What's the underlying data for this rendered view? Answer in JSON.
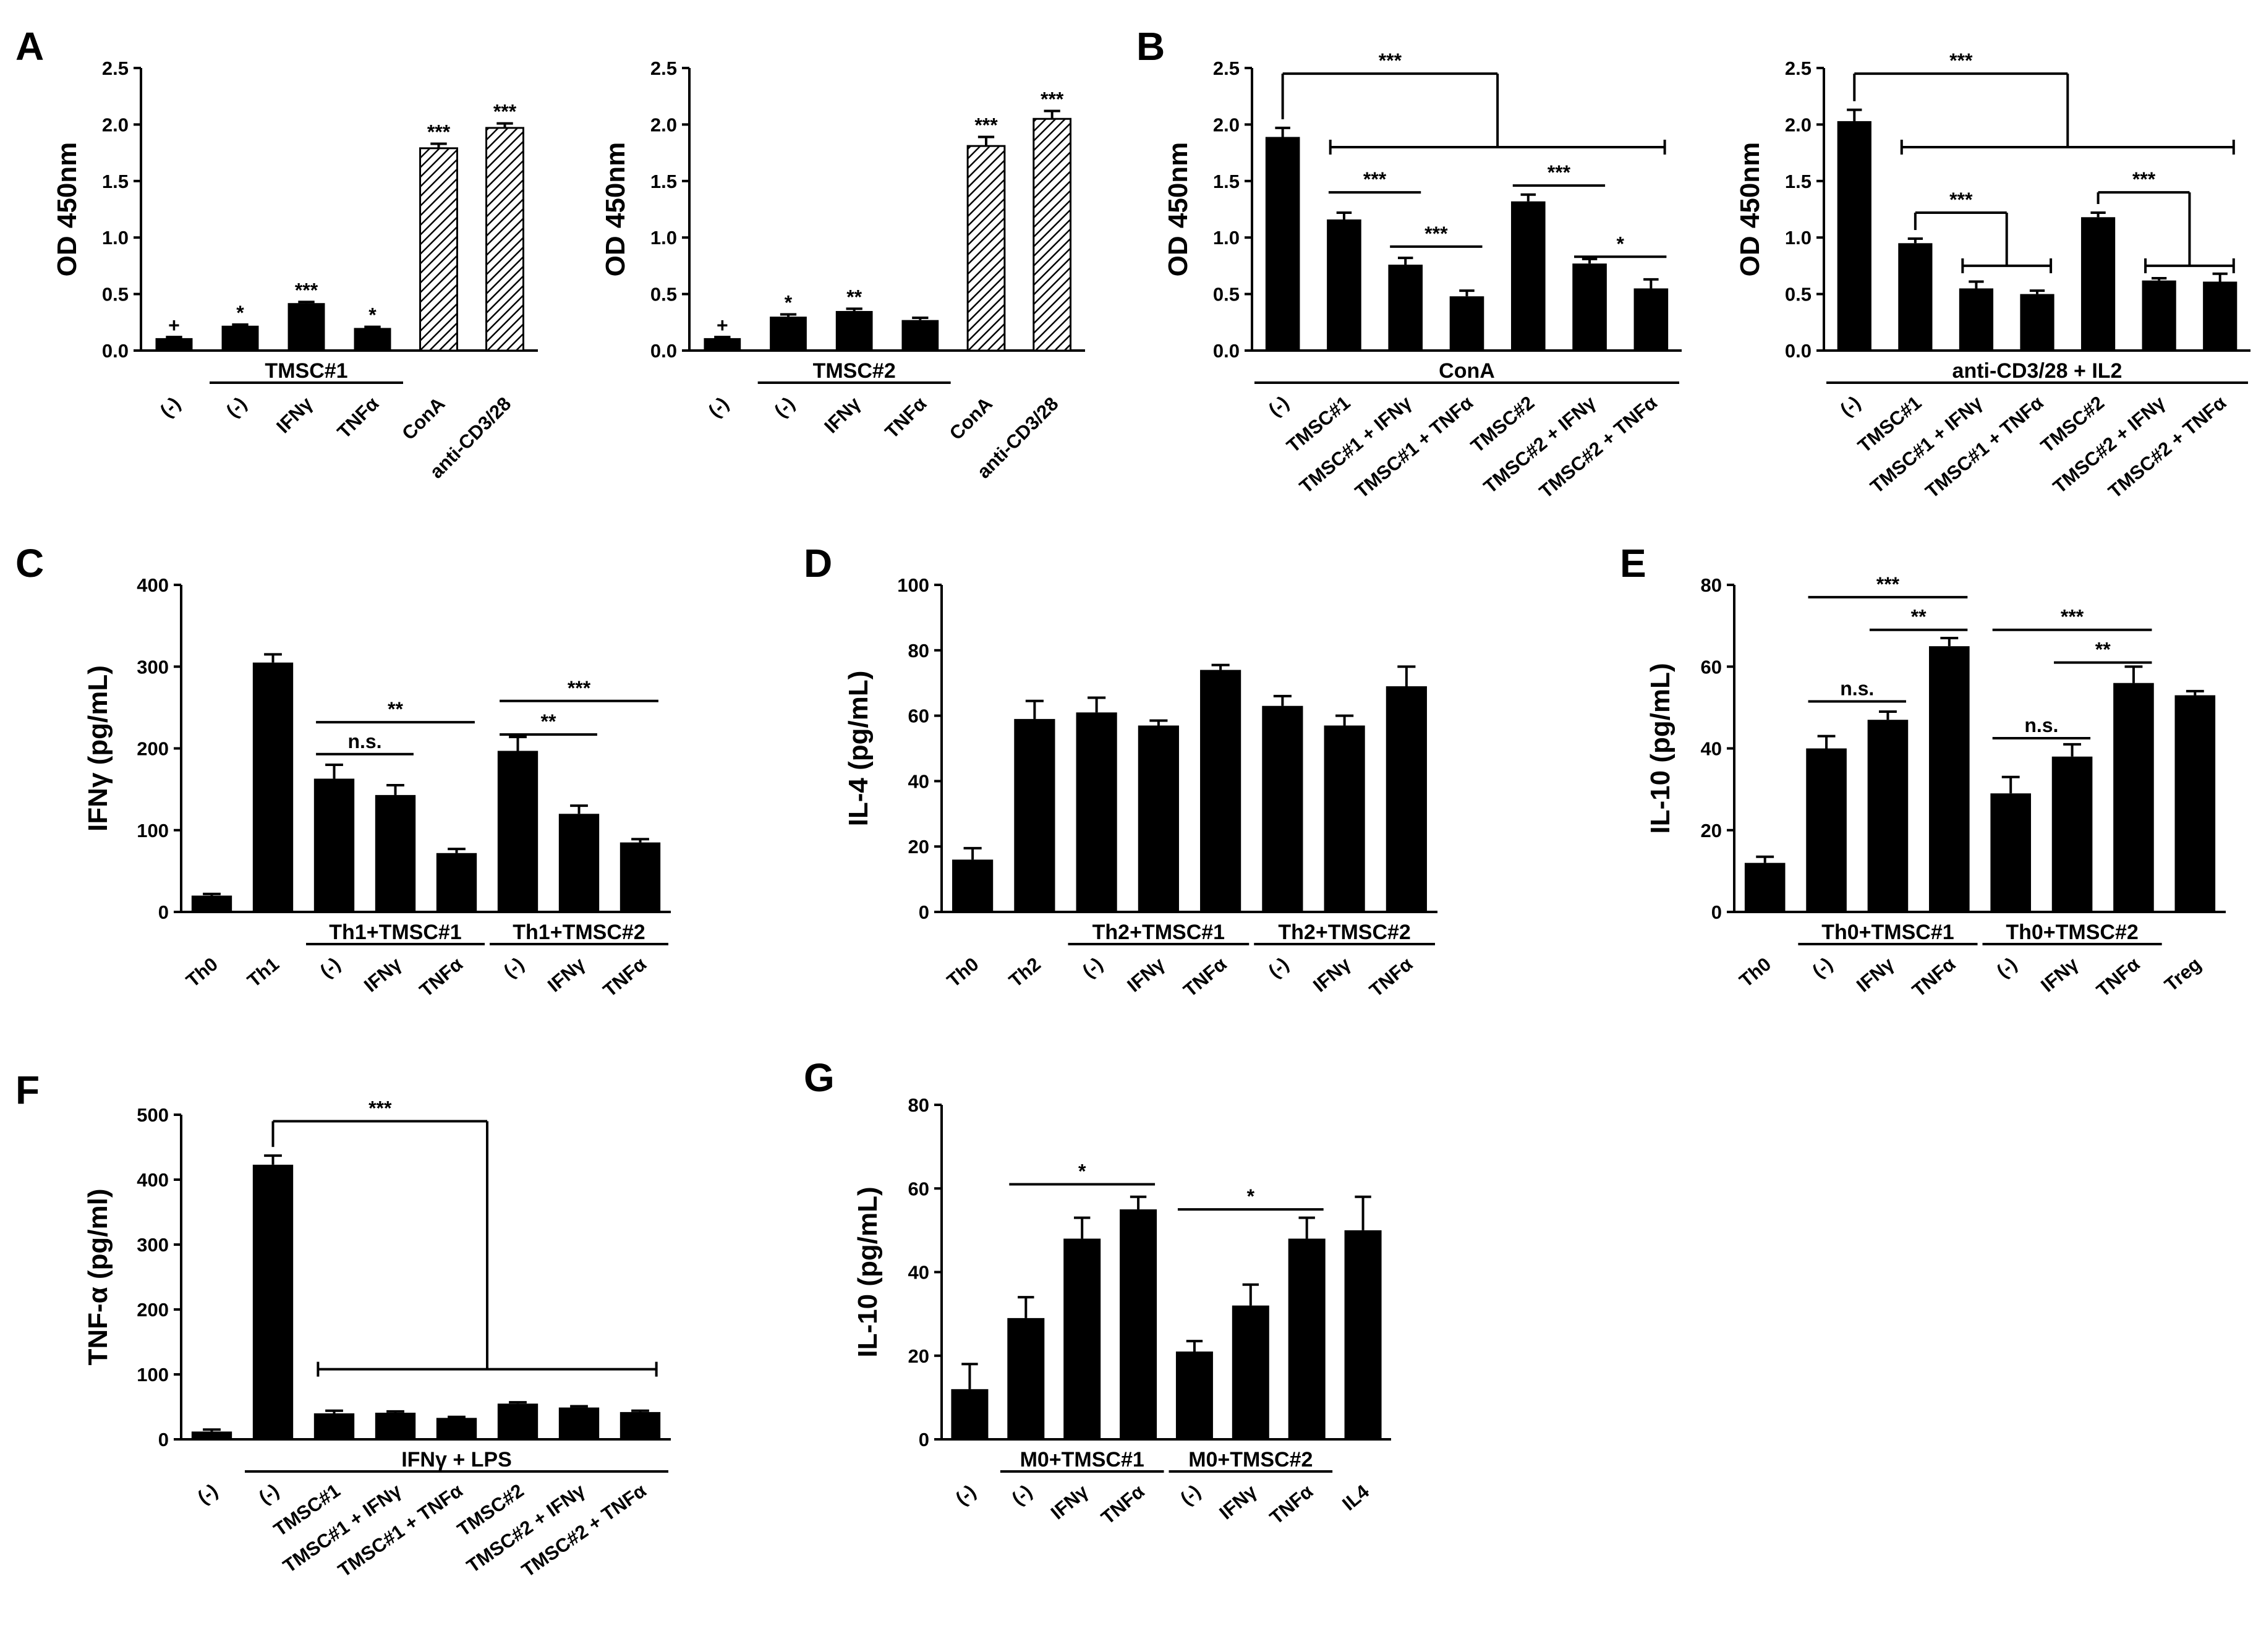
{
  "figure": {
    "panel_labels": [
      "A",
      "B",
      "C",
      "D",
      "E",
      "F",
      "G"
    ]
  },
  "chart_data": [
    {
      "id": "A1",
      "panel": "A",
      "type": "bar",
      "ylabel": "OD 450nm",
      "ylim": [
        0,
        2.5
      ],
      "yticks": [
        0.0,
        0.5,
        1.0,
        1.5,
        2.0,
        2.5
      ],
      "categories": [
        "(-)",
        "(-)",
        "IFNγ",
        "TNFα",
        "ConA",
        "anti-CD3/28"
      ],
      "values": [
        0.11,
        0.22,
        0.42,
        0.2,
        1.79,
        1.97
      ],
      "errors": [
        0.01,
        0.01,
        0.01,
        0.01,
        0.04,
        0.04
      ],
      "fills": [
        "black",
        "black",
        "black",
        "black",
        "hatched",
        "hatched"
      ],
      "bar_labels": [
        "+",
        "*",
        "***",
        "*",
        "***",
        "***"
      ],
      "groups": [
        {
          "label": "TMSC#1",
          "from": 1,
          "to": 3
        }
      ],
      "sig_brackets": []
    },
    {
      "id": "A2",
      "panel": "",
      "type": "bar",
      "ylabel": "OD 450nm",
      "ylim": [
        0,
        2.5
      ],
      "yticks": [
        0.0,
        0.5,
        1.0,
        1.5,
        2.0,
        2.5
      ],
      "categories": [
        "(-)",
        "(-)",
        "IFNγ",
        "TNFα",
        "ConA",
        "anti-CD3/28"
      ],
      "values": [
        0.11,
        0.3,
        0.35,
        0.27,
        1.81,
        2.05
      ],
      "errors": [
        0.01,
        0.02,
        0.02,
        0.02,
        0.08,
        0.07
      ],
      "fills": [
        "black",
        "black",
        "black",
        "black",
        "hatched",
        "hatched"
      ],
      "bar_labels": [
        "+",
        "*",
        "**",
        "",
        "***",
        "***"
      ],
      "groups": [
        {
          "label": "TMSC#2",
          "from": 1,
          "to": 3
        }
      ],
      "sig_brackets": []
    },
    {
      "id": "B1",
      "panel": "B",
      "type": "bar",
      "ylabel": "OD 450nm",
      "ylim": [
        0,
        2.5
      ],
      "yticks": [
        0.0,
        0.5,
        1.0,
        1.5,
        2.0,
        2.5
      ],
      "categories": [
        "(-)",
        "TMSC#1",
        "TMSC#1 + IFNγ",
        "TMSC#1 + TNFα",
        "TMSC#2",
        "TMSC#2 + IFNγ",
        "TMSC#2 + TNFα"
      ],
      "values": [
        1.89,
        1.16,
        0.76,
        0.48,
        1.32,
        0.77,
        0.55
      ],
      "errors": [
        0.08,
        0.06,
        0.06,
        0.05,
        0.06,
        0.04,
        0.08
      ],
      "fills": [
        "black",
        "black",
        "black",
        "black",
        "black",
        "black",
        "black"
      ],
      "bar_labels": [],
      "groups": [
        {
          "label": "ConA",
          "from": 0,
          "to": 6
        }
      ],
      "sig_brackets": [
        {
          "kind": "fork",
          "a": 0,
          "b_from": 1,
          "b_to": 6,
          "y": 2.45,
          "y_hline": 1.8,
          "text": "***"
        },
        {
          "kind": "line",
          "from": 1,
          "to": 2,
          "y": 1.4,
          "text": "***"
        },
        {
          "kind": "line",
          "from": 2,
          "to": 3,
          "y": 0.92,
          "text": "***"
        },
        {
          "kind": "line",
          "from": 4,
          "to": 5,
          "y": 1.46,
          "text": "***"
        },
        {
          "kind": "line",
          "from": 5,
          "to": 6,
          "y": 0.83,
          "text": "*"
        }
      ]
    },
    {
      "id": "B2",
      "panel": "",
      "type": "bar",
      "ylabel": "OD 450nm",
      "ylim": [
        0,
        2.5
      ],
      "yticks": [
        0.0,
        0.5,
        1.0,
        1.5,
        2.0,
        2.5
      ],
      "categories": [
        "(-)",
        "TMSC#1",
        "TMSC#1 + IFNγ",
        "TMSC#1 + TNFα",
        "TMSC#2",
        "TMSC#2 + IFNγ",
        "TMSC#2 + TNFα"
      ],
      "values": [
        2.03,
        0.95,
        0.55,
        0.5,
        1.18,
        0.62,
        0.61
      ],
      "errors": [
        0.1,
        0.04,
        0.06,
        0.03,
        0.04,
        0.02,
        0.07
      ],
      "fills": [
        "black",
        "black",
        "black",
        "black",
        "black",
        "black",
        "black"
      ],
      "bar_labels": [],
      "groups": [
        {
          "label": "anti-CD3/28 + IL2",
          "from": 0,
          "to": 6
        }
      ],
      "sig_brackets": [
        {
          "kind": "fork",
          "a": 0,
          "b_from": 1,
          "b_to": 6,
          "y": 2.45,
          "y_hline": 1.8,
          "text": "***"
        },
        {
          "kind": "fork",
          "a": 1,
          "b_from": 2,
          "b_to": 3,
          "y": 1.22,
          "y_hline": 0.75,
          "text": "***"
        },
        {
          "kind": "fork",
          "a": 4,
          "b_from": 5,
          "b_to": 6,
          "y": 1.4,
          "y_hline": 0.75,
          "text": "***"
        }
      ]
    },
    {
      "id": "C",
      "panel": "C",
      "type": "bar",
      "ylabel": "IFNγ (pg/mL)",
      "ylim": [
        0,
        400
      ],
      "yticks": [
        0,
        100,
        200,
        300,
        400
      ],
      "categories": [
        "Th0",
        "Th1",
        "(-)",
        "IFNγ",
        "TNFα",
        "(-)",
        "IFNγ",
        "TNFα"
      ],
      "values": [
        20,
        305,
        163,
        143,
        72,
        197,
        120,
        85
      ],
      "errors": [
        2,
        10,
        17,
        12,
        5,
        17,
        10,
        4
      ],
      "fills": [
        "black",
        "black",
        "black",
        "black",
        "black",
        "black",
        "black",
        "black"
      ],
      "bar_labels": [],
      "groups": [
        {
          "label": "Th1+TMSC#1",
          "from": 2,
          "to": 4
        },
        {
          "label": "Th1+TMSC#2",
          "from": 5,
          "to": 7
        }
      ],
      "sig_brackets": [
        {
          "kind": "line",
          "from": 2,
          "to": 3,
          "y": 193,
          "text": "n.s."
        },
        {
          "kind": "line",
          "from": 2,
          "to": 4,
          "y": 232,
          "text": "**"
        },
        {
          "kind": "line",
          "from": 5,
          "to": 6,
          "y": 217,
          "text": "**"
        },
        {
          "kind": "line",
          "from": 5,
          "to": 7,
          "y": 258,
          "text": "***"
        }
      ]
    },
    {
      "id": "D",
      "panel": "D",
      "type": "bar",
      "ylabel": "IL-4 (pg/mL)",
      "ylim": [
        0,
        100
      ],
      "yticks": [
        0,
        20,
        40,
        60,
        80,
        100
      ],
      "categories": [
        "Th0",
        "Th2",
        "(-)",
        "IFNγ",
        "TNFα",
        "(-)",
        "IFNγ",
        "TNFα"
      ],
      "values": [
        16,
        59,
        61,
        57,
        74,
        63,
        57,
        69
      ],
      "errors": [
        3.5,
        5.5,
        4.5,
        1.5,
        1.5,
        3,
        3,
        6
      ],
      "fills": [
        "black",
        "black",
        "black",
        "black",
        "black",
        "black",
        "black",
        "black"
      ],
      "bar_labels": [],
      "groups": [
        {
          "label": "Th2+TMSC#1",
          "from": 2,
          "to": 4
        },
        {
          "label": "Th2+TMSC#2",
          "from": 5,
          "to": 7
        }
      ],
      "sig_brackets": []
    },
    {
      "id": "E",
      "panel": "E",
      "type": "bar",
      "ylabel": "IL-10 (pg/mL)",
      "ylim": [
        0,
        80
      ],
      "yticks": [
        0,
        20,
        40,
        60,
        80
      ],
      "categories": [
        "Th0",
        "(-)",
        "IFNγ",
        "TNFα",
        "(-)",
        "IFNγ",
        "TNFα",
        "Treg"
      ],
      "values": [
        12,
        40,
        47,
        65,
        29,
        38,
        56,
        53
      ],
      "errors": [
        1.5,
        3,
        2,
        2,
        4,
        3,
        4,
        1
      ],
      "fills": [
        "black",
        "black",
        "black",
        "black",
        "black",
        "black",
        "black",
        "black"
      ],
      "bar_labels": [],
      "groups": [
        {
          "label": "Th0+TMSC#1",
          "from": 1,
          "to": 3
        },
        {
          "label": "Th0+TMSC#2",
          "from": 4,
          "to": 6
        }
      ],
      "sig_brackets": [
        {
          "kind": "line",
          "from": 1,
          "to": 2,
          "y": 51.5,
          "text": "n.s."
        },
        {
          "kind": "line",
          "from": 2,
          "to": 3,
          "y": 69,
          "text": "**"
        },
        {
          "kind": "line",
          "from": 1,
          "to": 3,
          "y": 77,
          "text": "***"
        },
        {
          "kind": "line",
          "from": 4,
          "to": 5,
          "y": 42.5,
          "text": "n.s."
        },
        {
          "kind": "line",
          "from": 5,
          "to": 6,
          "y": 61,
          "text": "**"
        },
        {
          "kind": "line",
          "from": 4,
          "to": 6,
          "y": 69,
          "text": "***"
        }
      ]
    },
    {
      "id": "F",
      "panel": "F",
      "type": "bar",
      "ylabel": "TNF-α (pg/ml)",
      "ylim": [
        0,
        500
      ],
      "yticks": [
        0,
        100,
        200,
        300,
        400,
        500
      ],
      "categories": [
        "(-)",
        "(-)",
        "TMSC#1",
        "TMSC#1 + IFNγ",
        "TMSC#1 + TNFα",
        "TMSC#2",
        "TMSC#2 + IFNγ",
        "TMSC#2 + TNFα"
      ],
      "values": [
        12,
        423,
        40,
        41,
        33,
        55,
        49,
        42
      ],
      "errors": [
        3,
        14,
        4,
        2,
        1.5,
        2,
        2,
        2
      ],
      "fills": [
        "black",
        "black",
        "black",
        "black",
        "black",
        "black",
        "black",
        "black"
      ],
      "bar_labels": [],
      "groups": [
        {
          "label": "IFNγ + LPS",
          "from": 1,
          "to": 7
        }
      ],
      "sig_brackets": [
        {
          "kind": "fork",
          "a": 1,
          "b_from": 2,
          "b_to": 7,
          "y": 490,
          "y_hline": 108,
          "text": "***"
        }
      ]
    },
    {
      "id": "G",
      "panel": "G",
      "type": "bar",
      "ylabel": "IL-10 (pg/mL)",
      "ylim": [
        0,
        80
      ],
      "yticks": [
        0,
        20,
        40,
        60,
        80
      ],
      "categories": [
        "(-)",
        "(-)",
        "IFNγ",
        "TNFα",
        "(-)",
        "IFNγ",
        "TNFα",
        "IL4"
      ],
      "values": [
        12,
        29,
        48,
        55,
        21,
        32,
        48,
        50
      ],
      "errors": [
        6,
        5,
        5,
        3,
        2.5,
        5,
        5,
        8
      ],
      "fills": [
        "black",
        "black",
        "black",
        "black",
        "black",
        "black",
        "black",
        "black"
      ],
      "bar_labels": [],
      "groups": [
        {
          "label": "M0+TMSC#1",
          "from": 1,
          "to": 3
        },
        {
          "label": "M0+TMSC#2",
          "from": 4,
          "to": 6
        }
      ],
      "sig_brackets": [
        {
          "kind": "line",
          "from": 1,
          "to": 3,
          "y": 61,
          "text": "*"
        },
        {
          "kind": "line",
          "from": 4,
          "to": 6,
          "y": 55,
          "text": "*"
        }
      ]
    }
  ]
}
